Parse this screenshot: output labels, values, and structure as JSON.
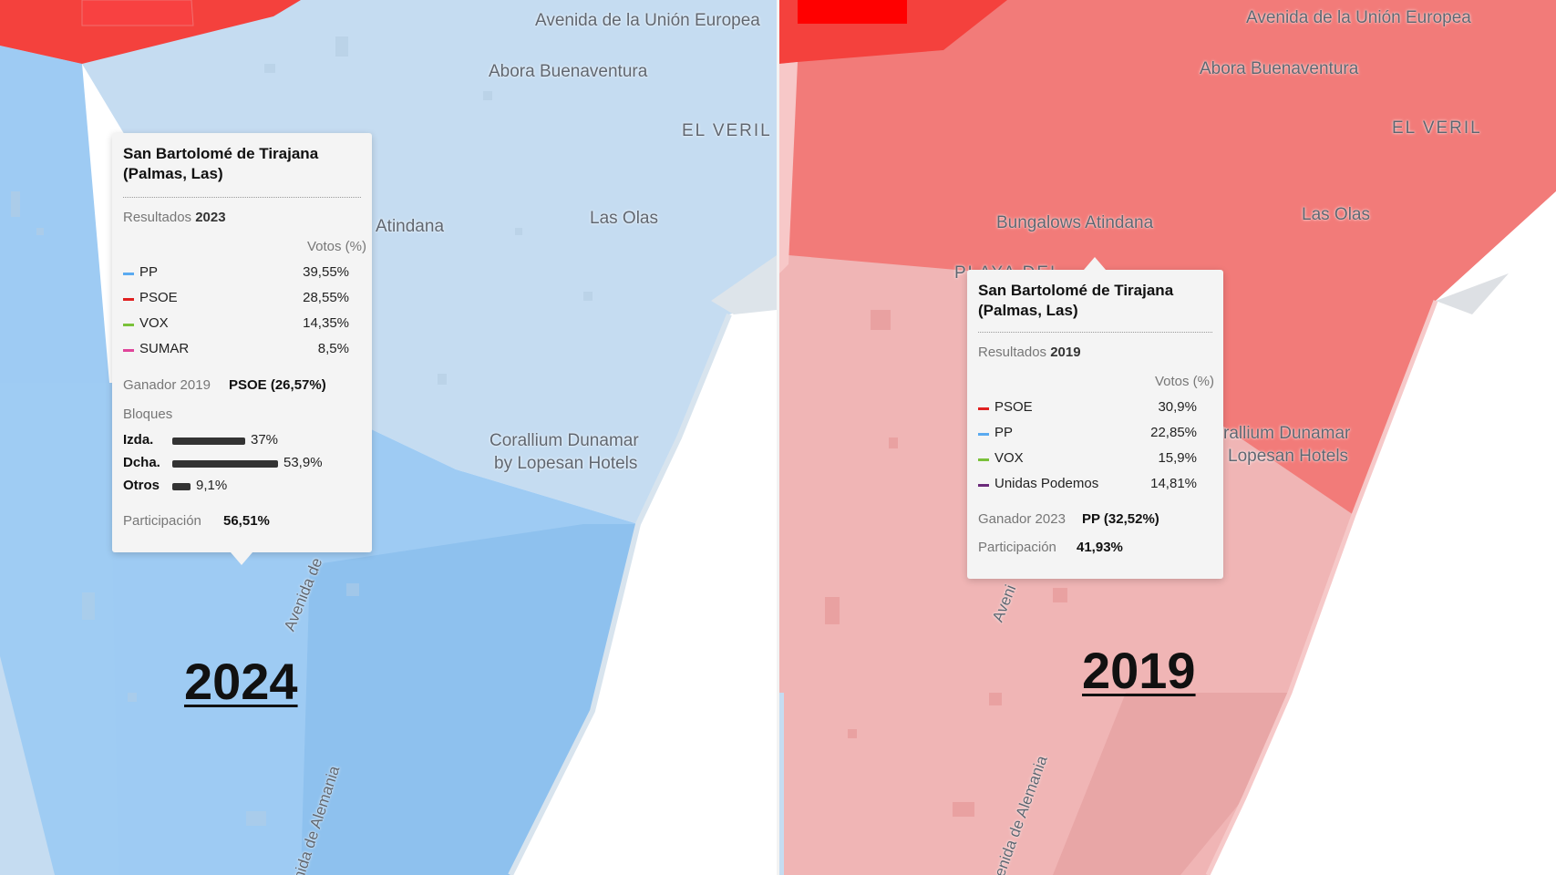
{
  "colors": {
    "pp_light": "#c5dcf1",
    "pp_mid": "#9ecbf3",
    "pp_dark": "#8ec1ee",
    "psoe_light": "#f0b5b5",
    "psoe_mid": "#f27b79",
    "psoe_dark": "#f4413d",
    "psoe_deep": "#ff0000",
    "line_pp": "#5aaaf0",
    "line_psoe": "#e02020",
    "line_vox": "#7ac13a",
    "line_sumar": "#e0459a",
    "line_podemos": "#6b2a7a"
  },
  "left": {
    "year": "2024",
    "map_labels": {
      "avenida_union": "Avenida de la Unión Europea",
      "abora": "Abora Buenaventura",
      "el_veril": "EL VERIL",
      "atindana": "Atindana",
      "las_olas": "Las Olas",
      "corallium_1": "Corallium Dunamar",
      "corallium_2": "by Lopesan Hotels",
      "avenida_de": "Avenida de",
      "alemania": "nida de Alemania"
    },
    "tooltip": {
      "title": "San Bartolomé de Tirajana (Palmas, Las)",
      "results_prefix": "Resultados",
      "results_year": "2023",
      "votes_header": "Votos (%)",
      "parties": [
        {
          "name": "PP",
          "value": "39,55%",
          "color": "#5aaaf0"
        },
        {
          "name": "PSOE",
          "value": "28,55%",
          "color": "#e02020"
        },
        {
          "name": "VOX",
          "value": "14,35%",
          "color": "#7ac13a"
        },
        {
          "name": "SUMAR",
          "value": "8,5%",
          "color": "#e0459a"
        }
      ],
      "winner_label": "Ganador 2019",
      "winner_value": "PSOE (26,57%)",
      "blocs_label": "Bloques",
      "blocs": [
        {
          "name": "Izda.",
          "value": "37%",
          "pct": 37
        },
        {
          "name": "Dcha.",
          "value": "53,9%",
          "pct": 53.9
        },
        {
          "name": "Otros",
          "value": "9,1%",
          "pct": 9.1
        }
      ],
      "participation_label": "Participación",
      "participation_value": "56,51%"
    }
  },
  "right": {
    "year": "2019",
    "map_labels": {
      "avenida_union": "Avenida de la Unión Europea",
      "abora": "Abora Buenaventura",
      "el_veril": "EL VERIL",
      "bungalows": "Bungalows Atindana",
      "las_olas": "Las Olas",
      "playa": "PLAYA DEL",
      "corallium_1": "rallium Dunamar",
      "corallium_2": "Lopesan Hotels",
      "aveni": "Aveni",
      "alemania": "enida de Alemania"
    },
    "tooltip": {
      "title": "San Bartolomé de Tirajana (Palmas, Las)",
      "results_prefix": "Resultados",
      "results_year": "2019",
      "votes_header": "Votos (%)",
      "parties": [
        {
          "name": "PSOE",
          "value": "30,9%",
          "color": "#e02020"
        },
        {
          "name": "PP",
          "value": "22,85%",
          "color": "#5aaaf0"
        },
        {
          "name": "VOX",
          "value": "15,9%",
          "color": "#7ac13a"
        },
        {
          "name": "Unidas Podemos",
          "value": "14,81%",
          "color": "#6b2a7a"
        }
      ],
      "winner_label": "Ganador 2023",
      "winner_value": "PP (32,52%)",
      "participation_label": "Participación",
      "participation_value": "41,93%"
    }
  }
}
